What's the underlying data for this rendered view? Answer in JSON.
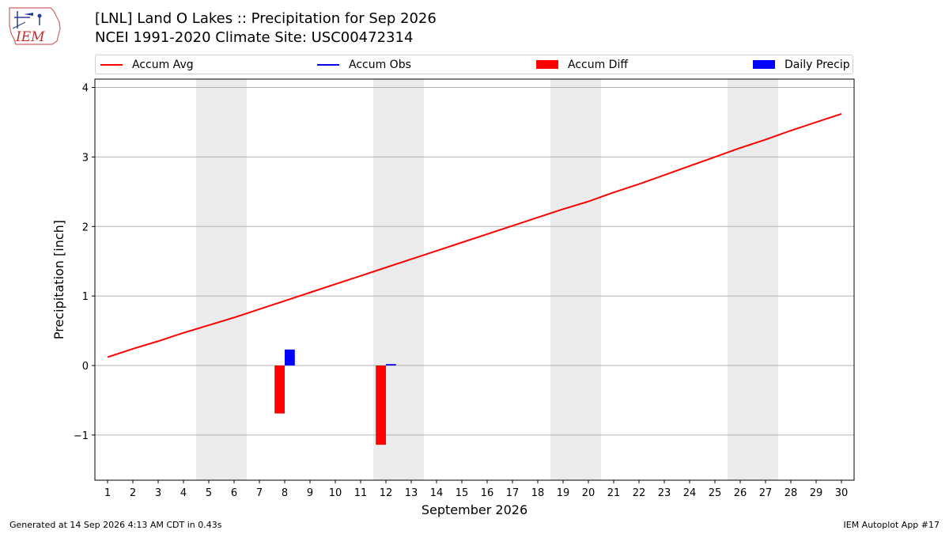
{
  "header": {
    "logo_text": "IEM",
    "title": "[LNL] Land O Lakes :: Precipitation for Sep 2026",
    "subtitle": "NCEI 1991-2020 Climate Site: USC00472314"
  },
  "legend": {
    "items": [
      {
        "label": "Accum Avg",
        "color": "#ff0000",
        "kind": "line"
      },
      {
        "label": "Accum Obs",
        "color": "#0000ff",
        "kind": "line"
      },
      {
        "label": "Accum Diff",
        "color": "#ff0000",
        "kind": "patch"
      },
      {
        "label": "Daily Precip",
        "color": "#0000ff",
        "kind": "patch"
      }
    ]
  },
  "chart_data": {
    "type": "bar",
    "xlabel": "September 2026",
    "ylabel": "Precipitation [inch]",
    "xlim": [
      0.5,
      30.5
    ],
    "ylim": [
      -1.65,
      4.12
    ],
    "yticks": [
      -1,
      0,
      1,
      2,
      3,
      4
    ],
    "ytick_labels": [
      "−1",
      "0",
      "1",
      "2",
      "3",
      "4"
    ],
    "x": [
      1,
      2,
      3,
      4,
      5,
      6,
      7,
      8,
      9,
      10,
      11,
      12,
      13,
      14,
      15,
      16,
      17,
      18,
      19,
      20,
      21,
      22,
      23,
      24,
      25,
      26,
      27,
      28,
      29,
      30
    ],
    "grid": "horizontal",
    "weekend_shading": [
      [
        4.5,
        6.5
      ],
      [
        11.5,
        13.5
      ],
      [
        18.5,
        20.5
      ],
      [
        25.5,
        27.5
      ]
    ],
    "series": [
      {
        "name": "Accum Avg",
        "type": "line",
        "color": "#ff0000",
        "values": [
          0.12,
          0.24,
          0.35,
          0.47,
          0.58,
          0.69,
          0.81,
          0.93,
          1.05,
          1.17,
          1.29,
          1.41,
          1.53,
          1.65,
          1.77,
          1.89,
          2.01,
          2.13,
          2.25,
          2.36,
          2.49,
          2.61,
          2.74,
          2.87,
          3.0,
          3.13,
          3.25,
          3.38,
          3.5,
          3.62
        ]
      },
      {
        "name": "Accum Diff",
        "type": "bar",
        "color": "#ff0000",
        "offset": -0.2,
        "points": [
          {
            "x": 8,
            "y": -0.69
          },
          {
            "x": 12,
            "y": -1.14
          }
        ]
      },
      {
        "name": "Daily Precip",
        "type": "bar",
        "color": "#0000ff",
        "offset": 0.2,
        "points": [
          {
            "x": 8,
            "y": 0.23
          },
          {
            "x": 12,
            "y": 0.02
          }
        ]
      }
    ]
  },
  "footer": {
    "left": "Generated at 14 Sep 2026 4:13 AM CDT in 0.43s",
    "right": "IEM Autoplot App #17"
  }
}
